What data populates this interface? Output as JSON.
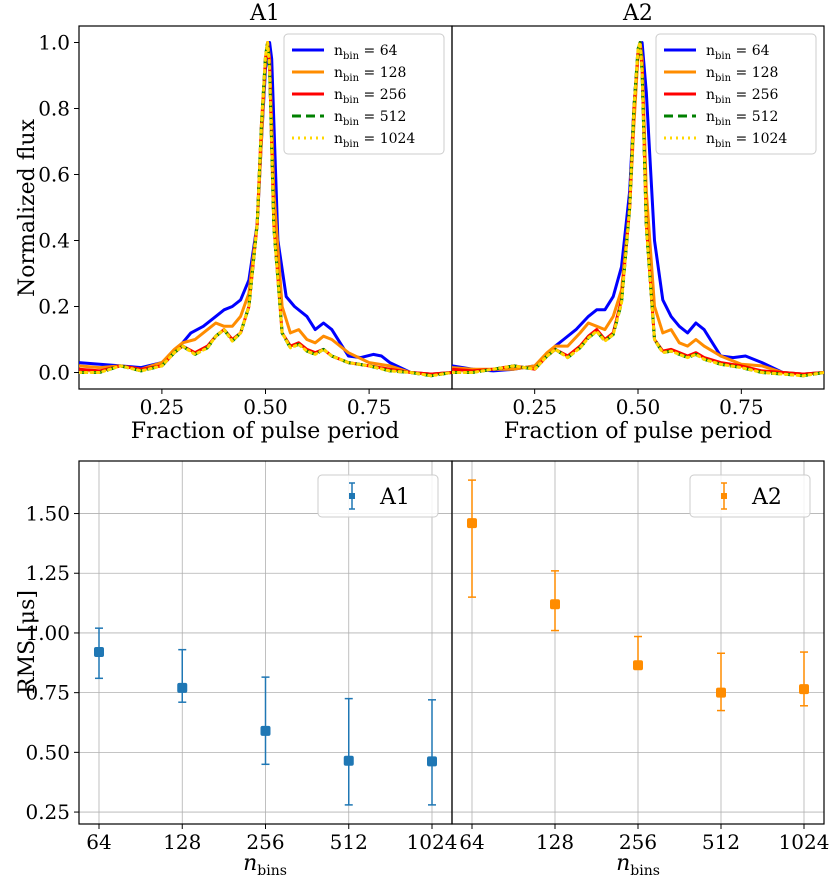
{
  "chart_data": [
    {
      "type": "line",
      "panel": "top-left",
      "title": "A1",
      "xlabel": "Fraction of pulse period",
      "ylabel": "Normalized flux",
      "xlim": [
        0.05,
        0.95
      ],
      "ylim": [
        -0.05,
        1.05
      ],
      "xticks": [
        0.25,
        0.5,
        0.75
      ],
      "xtick_labels": [
        "0.25",
        "0.50",
        "0.75"
      ],
      "yticks": [
        0.0,
        0.2,
        0.4,
        0.6,
        0.8,
        1.0
      ],
      "ytick_labels": [
        "0.0",
        "0.2",
        "0.4",
        "0.6",
        "0.8",
        "1.0"
      ],
      "legend_position": "top-right",
      "series": [
        {
          "name": "n",
          "sub": "bin",
          "value": "64",
          "color": "#0000ff",
          "style": "solid",
          "x": [
            0.05,
            0.1,
            0.15,
            0.2,
            0.25,
            0.27,
            0.3,
            0.32,
            0.35,
            0.38,
            0.4,
            0.42,
            0.44,
            0.46,
            0.48,
            0.49,
            0.5,
            0.51,
            0.515,
            0.53,
            0.55,
            0.57,
            0.6,
            0.62,
            0.64,
            0.66,
            0.68,
            0.7,
            0.73,
            0.76,
            0.78,
            0.8,
            0.85,
            0.9,
            0.95
          ],
          "y": [
            0.03,
            0.025,
            0.02,
            0.015,
            0.03,
            0.05,
            0.09,
            0.12,
            0.14,
            0.17,
            0.19,
            0.2,
            0.22,
            0.28,
            0.45,
            0.7,
            0.92,
            1.0,
            0.95,
            0.4,
            0.23,
            0.2,
            0.17,
            0.13,
            0.15,
            0.13,
            0.09,
            0.05,
            0.045,
            0.055,
            0.05,
            0.03,
            0.0,
            -0.005,
            0.0
          ]
        },
        {
          "name": "n",
          "sub": "bin",
          "value": "128",
          "color": "#ff8c00",
          "style": "solid",
          "x": [
            0.05,
            0.1,
            0.15,
            0.2,
            0.25,
            0.28,
            0.3,
            0.33,
            0.36,
            0.38,
            0.4,
            0.42,
            0.44,
            0.46,
            0.48,
            0.49,
            0.5,
            0.505,
            0.51,
            0.52,
            0.54,
            0.56,
            0.58,
            0.6,
            0.62,
            0.64,
            0.66,
            0.7,
            0.75,
            0.8,
            0.85,
            0.9,
            0.95
          ],
          "y": [
            0.02,
            0.015,
            0.02,
            0.01,
            0.03,
            0.07,
            0.09,
            0.1,
            0.13,
            0.15,
            0.14,
            0.14,
            0.17,
            0.24,
            0.45,
            0.7,
            0.95,
            1.0,
            0.95,
            0.55,
            0.2,
            0.12,
            0.13,
            0.1,
            0.09,
            0.11,
            0.1,
            0.06,
            0.03,
            0.02,
            0.0,
            -0.005,
            0.0
          ]
        },
        {
          "name": "n",
          "sub": "bin",
          "value": "256",
          "color": "#ff0000",
          "style": "solid",
          "x": [
            0.05,
            0.1,
            0.15,
            0.2,
            0.25,
            0.28,
            0.3,
            0.33,
            0.36,
            0.38,
            0.4,
            0.42,
            0.44,
            0.46,
            0.48,
            0.49,
            0.5,
            0.505,
            0.51,
            0.52,
            0.54,
            0.56,
            0.58,
            0.6,
            0.62,
            0.64,
            0.66,
            0.7,
            0.75,
            0.8,
            0.85,
            0.9,
            0.95
          ],
          "y": [
            0.01,
            0.005,
            0.02,
            0.01,
            0.02,
            0.06,
            0.08,
            0.06,
            0.08,
            0.11,
            0.13,
            0.1,
            0.12,
            0.2,
            0.45,
            0.75,
            0.95,
            1.0,
            0.93,
            0.45,
            0.12,
            0.08,
            0.09,
            0.07,
            0.06,
            0.07,
            0.05,
            0.03,
            0.02,
            0.01,
            0.0,
            -0.005,
            0.0
          ]
        },
        {
          "name": "n",
          "sub": "bin",
          "value": "512",
          "color": "#008000",
          "style": "dashed",
          "x": [
            0.05,
            0.1,
            0.15,
            0.2,
            0.25,
            0.28,
            0.3,
            0.33,
            0.36,
            0.38,
            0.4,
            0.42,
            0.44,
            0.46,
            0.48,
            0.49,
            0.5,
            0.505,
            0.51,
            0.52,
            0.54,
            0.56,
            0.58,
            0.6,
            0.62,
            0.64,
            0.66,
            0.7,
            0.75,
            0.8,
            0.85,
            0.9,
            0.95
          ],
          "y": [
            0.0,
            0.0,
            0.02,
            0.005,
            0.02,
            0.06,
            0.08,
            0.055,
            0.075,
            0.11,
            0.13,
            0.095,
            0.12,
            0.2,
            0.45,
            0.75,
            0.96,
            1.0,
            0.92,
            0.44,
            0.12,
            0.075,
            0.085,
            0.065,
            0.055,
            0.07,
            0.05,
            0.03,
            0.02,
            0.005,
            0.0,
            -0.01,
            0.0
          ]
        },
        {
          "name": "n",
          "sub": "bin",
          "value": "1024",
          "color": "#ffd700",
          "style": "dotted",
          "x": [
            0.05,
            0.1,
            0.15,
            0.2,
            0.25,
            0.28,
            0.3,
            0.33,
            0.36,
            0.38,
            0.4,
            0.42,
            0.44,
            0.46,
            0.48,
            0.49,
            0.5,
            0.505,
            0.51,
            0.52,
            0.54,
            0.56,
            0.58,
            0.6,
            0.62,
            0.64,
            0.66,
            0.7,
            0.75,
            0.8,
            0.85,
            0.9,
            0.95
          ],
          "y": [
            0.0,
            0.0,
            0.02,
            0.005,
            0.02,
            0.06,
            0.08,
            0.055,
            0.075,
            0.11,
            0.13,
            0.095,
            0.12,
            0.2,
            0.45,
            0.75,
            0.96,
            1.0,
            0.92,
            0.44,
            0.12,
            0.075,
            0.085,
            0.065,
            0.055,
            0.07,
            0.05,
            0.03,
            0.02,
            0.005,
            0.0,
            -0.01,
            0.0
          ]
        }
      ]
    },
    {
      "type": "line",
      "panel": "top-right",
      "title": "A2",
      "xlabel": "Fraction of pulse period",
      "ylabel": "",
      "xlim": [
        0.05,
        0.95
      ],
      "ylim": [
        -0.05,
        1.05
      ],
      "xticks": [
        0.25,
        0.5,
        0.75
      ],
      "xtick_labels": [
        "0.25",
        "0.50",
        "0.75"
      ],
      "legend_position": "top-right",
      "series": [
        {
          "name": "n",
          "sub": "bin",
          "value": "64",
          "color": "#0000ff",
          "style": "solid",
          "x": [
            0.05,
            0.1,
            0.15,
            0.2,
            0.25,
            0.28,
            0.3,
            0.32,
            0.35,
            0.38,
            0.4,
            0.42,
            0.44,
            0.46,
            0.48,
            0.49,
            0.5,
            0.51,
            0.52,
            0.54,
            0.56,
            0.58,
            0.6,
            0.62,
            0.64,
            0.66,
            0.68,
            0.7,
            0.73,
            0.76,
            0.8,
            0.85,
            0.9,
            0.95
          ],
          "y": [
            0.02,
            0.01,
            0.005,
            0.01,
            0.02,
            0.05,
            0.08,
            0.1,
            0.13,
            0.17,
            0.19,
            0.19,
            0.23,
            0.32,
            0.55,
            0.8,
            0.97,
            1.0,
            0.85,
            0.4,
            0.22,
            0.17,
            0.14,
            0.12,
            0.15,
            0.13,
            0.09,
            0.05,
            0.045,
            0.05,
            0.03,
            0.0,
            -0.005,
            0.0
          ]
        },
        {
          "name": "n",
          "sub": "bin",
          "value": "128",
          "color": "#ff8c00",
          "style": "solid",
          "x": [
            0.05,
            0.1,
            0.15,
            0.2,
            0.25,
            0.28,
            0.3,
            0.33,
            0.36,
            0.38,
            0.4,
            0.42,
            0.44,
            0.46,
            0.48,
            0.49,
            0.5,
            0.505,
            0.51,
            0.52,
            0.54,
            0.56,
            0.58,
            0.6,
            0.62,
            0.64,
            0.66,
            0.7,
            0.75,
            0.8,
            0.85,
            0.9,
            0.95
          ],
          "y": [
            0.015,
            0.01,
            0.01,
            0.01,
            0.02,
            0.06,
            0.08,
            0.08,
            0.12,
            0.15,
            0.14,
            0.13,
            0.17,
            0.25,
            0.5,
            0.75,
            0.96,
            1.0,
            0.95,
            0.55,
            0.2,
            0.12,
            0.13,
            0.09,
            0.08,
            0.1,
            0.08,
            0.05,
            0.025,
            0.02,
            0.0,
            -0.005,
            0.0
          ]
        },
        {
          "name": "n",
          "sub": "bin",
          "value": "256",
          "color": "#ff0000",
          "style": "solid",
          "x": [
            0.05,
            0.1,
            0.15,
            0.2,
            0.25,
            0.28,
            0.3,
            0.33,
            0.36,
            0.38,
            0.4,
            0.42,
            0.44,
            0.46,
            0.48,
            0.49,
            0.5,
            0.505,
            0.51,
            0.52,
            0.54,
            0.56,
            0.58,
            0.6,
            0.62,
            0.64,
            0.66,
            0.7,
            0.75,
            0.8,
            0.85,
            0.9,
            0.95
          ],
          "y": [
            0.01,
            0.005,
            0.01,
            0.02,
            0.01,
            0.05,
            0.07,
            0.05,
            0.08,
            0.11,
            0.13,
            0.1,
            0.12,
            0.22,
            0.5,
            0.8,
            0.97,
            1.0,
            0.92,
            0.45,
            0.1,
            0.065,
            0.07,
            0.06,
            0.05,
            0.06,
            0.045,
            0.03,
            0.02,
            0.005,
            0.0,
            -0.005,
            0.0
          ]
        },
        {
          "name": "n",
          "sub": "bin",
          "value": "512",
          "color": "#008000",
          "style": "dashed",
          "x": [
            0.05,
            0.1,
            0.15,
            0.2,
            0.25,
            0.28,
            0.3,
            0.33,
            0.36,
            0.38,
            0.4,
            0.42,
            0.44,
            0.46,
            0.48,
            0.49,
            0.5,
            0.505,
            0.51,
            0.52,
            0.54,
            0.56,
            0.58,
            0.6,
            0.62,
            0.64,
            0.66,
            0.7,
            0.75,
            0.8,
            0.85,
            0.9,
            0.95
          ],
          "y": [
            0.0,
            0.0,
            0.01,
            0.02,
            0.01,
            0.05,
            0.07,
            0.045,
            0.075,
            0.105,
            0.125,
            0.095,
            0.115,
            0.21,
            0.5,
            0.8,
            0.98,
            1.0,
            0.91,
            0.44,
            0.1,
            0.06,
            0.065,
            0.055,
            0.045,
            0.055,
            0.04,
            0.025,
            0.015,
            0.0,
            -0.005,
            -0.01,
            0.0
          ]
        },
        {
          "name": "n",
          "sub": "bin",
          "value": "1024",
          "color": "#ffd700",
          "style": "dotted",
          "x": [
            0.05,
            0.1,
            0.15,
            0.2,
            0.25,
            0.28,
            0.3,
            0.33,
            0.36,
            0.38,
            0.4,
            0.42,
            0.44,
            0.46,
            0.48,
            0.49,
            0.5,
            0.505,
            0.51,
            0.52,
            0.54,
            0.56,
            0.58,
            0.6,
            0.62,
            0.64,
            0.66,
            0.7,
            0.75,
            0.8,
            0.85,
            0.9,
            0.95
          ],
          "y": [
            0.0,
            0.0,
            0.01,
            0.02,
            0.01,
            0.05,
            0.07,
            0.045,
            0.075,
            0.105,
            0.125,
            0.095,
            0.115,
            0.21,
            0.5,
            0.8,
            0.98,
            1.0,
            0.91,
            0.44,
            0.1,
            0.06,
            0.065,
            0.055,
            0.045,
            0.055,
            0.04,
            0.025,
            0.015,
            0.0,
            -0.005,
            -0.01,
            0.0
          ]
        }
      ]
    },
    {
      "type": "scatter",
      "panel": "bottom-left",
      "xlabel": "n",
      "xlabel_sub": "bins",
      "ylabel": "RMS [μs]",
      "categories": [
        "64",
        "128",
        "256",
        "512",
        "1024"
      ],
      "ylim": [
        0.2,
        1.72
      ],
      "yticks": [
        0.25,
        0.5,
        0.75,
        1.0,
        1.25,
        1.5
      ],
      "ytick_labels": [
        "0.25",
        "0.50",
        "0.75",
        "1.00",
        "1.25",
        "1.50"
      ],
      "grid": true,
      "legend_position": "top-right",
      "series": [
        {
          "name": "A1",
          "color": "#1f77b4",
          "marker": "square",
          "values": [
            0.92,
            0.77,
            0.59,
            0.465,
            0.462
          ],
          "err_low": [
            0.81,
            0.71,
            0.45,
            0.28,
            0.28
          ],
          "err_high": [
            1.02,
            0.93,
            0.815,
            0.725,
            0.72
          ]
        }
      ]
    },
    {
      "type": "scatter",
      "panel": "bottom-right",
      "xlabel": "n",
      "xlabel_sub": "bins",
      "ylabel": "",
      "categories": [
        "64",
        "128",
        "256",
        "512",
        "1024"
      ],
      "ylim": [
        0.2,
        1.72
      ],
      "grid": true,
      "legend_position": "top-right",
      "series": [
        {
          "name": "A2",
          "color": "#ff8c00",
          "marker": "square",
          "values": [
            1.46,
            1.12,
            0.865,
            0.75,
            0.765
          ],
          "err_low": [
            1.15,
            1.01,
            0.86,
            0.675,
            0.695
          ],
          "err_high": [
            1.64,
            1.26,
            0.985,
            0.915,
            0.92
          ]
        }
      ]
    }
  ]
}
